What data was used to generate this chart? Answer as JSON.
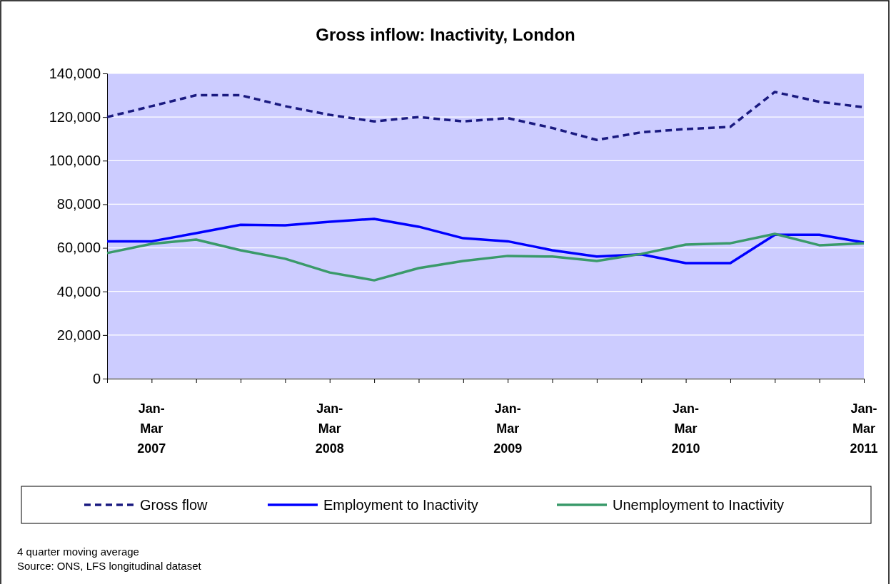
{
  "chart_data": {
    "type": "line",
    "title": "Gross inflow: Inactivity, London",
    "categories": [
      null,
      "Jan-Mar 2007",
      null,
      null,
      null,
      "Jan-Mar 2008",
      null,
      null,
      null,
      "Jan-Mar 2009",
      null,
      null,
      null,
      "Jan-Mar 2010",
      null,
      null,
      null,
      "Jan-Mar 2011"
    ],
    "series": [
      {
        "name": "Gross flow",
        "color": "#1a1a80",
        "line_style": "dashed",
        "values": [
          120000,
          125000,
          130000,
          130000,
          125000,
          121000,
          118000,
          120000,
          118000,
          119500,
          115000,
          109500,
          113000,
          114500,
          115500,
          131500,
          127000,
          124500
        ]
      },
      {
        "name": "Employment to Inactivity",
        "color": "#0000ff",
        "line_style": "solid",
        "values": [
          63000,
          63000,
          66700,
          70600,
          70300,
          72000,
          73300,
          69700,
          64400,
          63000,
          58900,
          56000,
          57000,
          53000,
          53000,
          66000,
          66000,
          62500
        ]
      },
      {
        "name": "Unemployment to Inactivity",
        "color": "#3a9a6a",
        "line_style": "solid",
        "values": [
          57600,
          61800,
          63800,
          58900,
          55000,
          48700,
          45100,
          50700,
          54000,
          56300,
          56000,
          54000,
          57200,
          61500,
          62100,
          66400,
          61200,
          62100
        ]
      }
    ],
    "ylim": [
      0,
      140000
    ],
    "yticks": [
      {
        "value": 0,
        "label": "0"
      },
      {
        "value": 20000,
        "label": "20,000"
      },
      {
        "value": 40000,
        "label": "40,000"
      },
      {
        "value": 60000,
        "label": "60,000"
      },
      {
        "value": 80000,
        "label": "80,000"
      },
      {
        "value": 100000,
        "label": "100,000"
      },
      {
        "value": 120000,
        "label": "120,000"
      },
      {
        "value": 140000,
        "label": "140,000"
      }
    ],
    "grid": "y",
    "legend": "bottom",
    "marker": "none",
    "annotations": [
      "4 quarter moving average",
      "Source: ONS, LFS longitudinal dataset"
    ]
  }
}
